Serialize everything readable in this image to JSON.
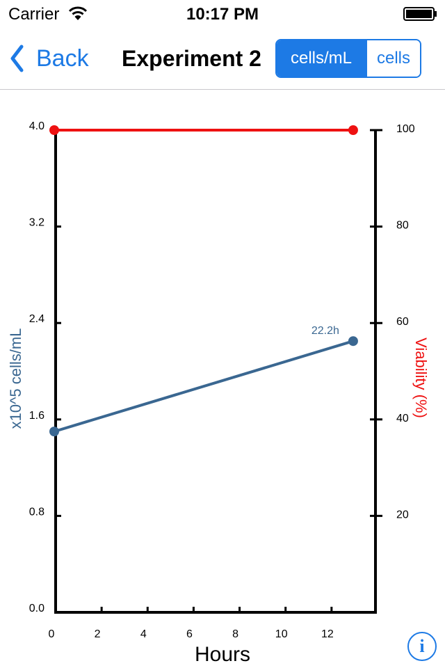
{
  "status_bar": {
    "carrier": "Carrier",
    "time": "10:17 PM"
  },
  "nav": {
    "back_label": "Back",
    "title": "Experiment 2",
    "segments": [
      {
        "label": "cells/mL",
        "selected": true
      },
      {
        "label": "cells",
        "selected": false
      }
    ]
  },
  "info_button": {
    "label": "i"
  },
  "colors": {
    "accent": "#1d7ae5",
    "cells_series": "#3a6791",
    "viability_series": "#ee1111"
  },
  "chart_data": {
    "type": "line",
    "xlabel": "Hours",
    "ylabel_left": "x10^5 cells/mL",
    "ylabel_right": "Viability (%)",
    "xlim": [
      0,
      14
    ],
    "ylim_left": [
      0,
      4.0
    ],
    "ylim_right": [
      0,
      100
    ],
    "x_ticks": [
      "0",
      "2",
      "4",
      "6",
      "8",
      "10",
      "12"
    ],
    "y_left_ticks": [
      "0.0",
      "0.8",
      "1.6",
      "2.4",
      "3.2",
      "4.0"
    ],
    "y_right_ticks": [
      "20",
      "40",
      "60",
      "80",
      "100"
    ],
    "series": [
      {
        "axis": "left",
        "x": [
          0,
          13
        ],
        "y": [
          1.5,
          2.25
        ],
        "point_label": "22.2h"
      },
      {
        "axis": "right",
        "x": [
          0,
          13
        ],
        "y": [
          100,
          100
        ]
      }
    ]
  }
}
